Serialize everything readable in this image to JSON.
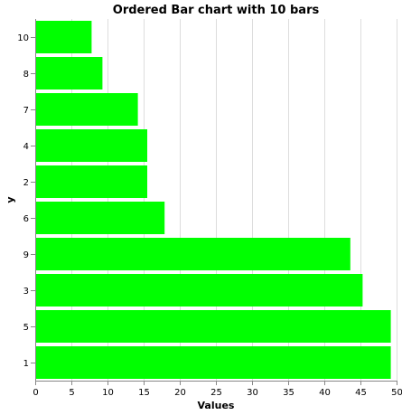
{
  "chart_data": {
    "type": "bar",
    "orientation": "horizontal",
    "title": "Ordered Bar chart with 10 bars",
    "xlabel": "Values",
    "ylabel": "y",
    "categories": [
      "10",
      "8",
      "7",
      "4",
      "2",
      "6",
      "9",
      "3",
      "5",
      "1"
    ],
    "values": [
      7.8,
      9.3,
      14.2,
      15.5,
      15.5,
      17.9,
      43.6,
      45.3,
      49.2,
      49.2
    ],
    "xlim": [
      0,
      50
    ],
    "xticks": [
      0,
      5,
      10,
      15,
      20,
      25,
      30,
      35,
      40,
      45,
      50
    ],
    "grid": true,
    "bar_color": "#00ff00"
  }
}
